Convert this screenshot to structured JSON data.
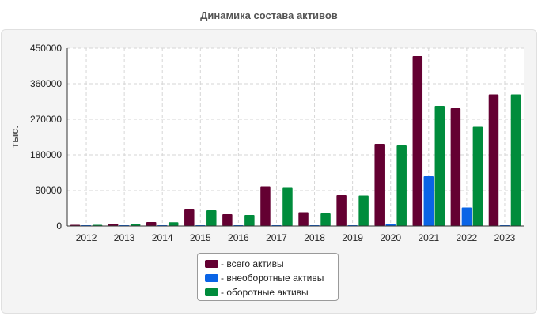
{
  "title": "Динамика состава активов",
  "chart_data": {
    "type": "bar",
    "title": "Динамика состава активов",
    "ylabel": "тыс.",
    "xlabel": "",
    "categories": [
      "2012",
      "2013",
      "2014",
      "2015",
      "2016",
      "2017",
      "2018",
      "2019",
      "2020",
      "2021",
      "2022",
      "2023"
    ],
    "ylim": [
      0,
      450000
    ],
    "yticks": [
      0,
      90000,
      180000,
      270000,
      360000,
      450000
    ],
    "grid": true,
    "legend_position": "bottom",
    "series": [
      {
        "name": "- всего активы",
        "color": "#640032",
        "values": [
          3000,
          5000,
          10000,
          42000,
          30000,
          99000,
          35000,
          78000,
          208000,
          430000,
          298000,
          333000
        ]
      },
      {
        "name": "- внеоборотные активы",
        "color": "#0a64e6",
        "values": [
          200,
          200,
          300,
          1500,
          1200,
          2000,
          1000,
          1000,
          5000,
          126000,
          47000,
          1500
        ]
      },
      {
        "name": "- оборотные активы",
        "color": "#008c3c",
        "values": [
          3000,
          5000,
          9500,
          40000,
          28000,
          97000,
          32000,
          77000,
          204000,
          304000,
          251000,
          333000
        ]
      }
    ]
  }
}
